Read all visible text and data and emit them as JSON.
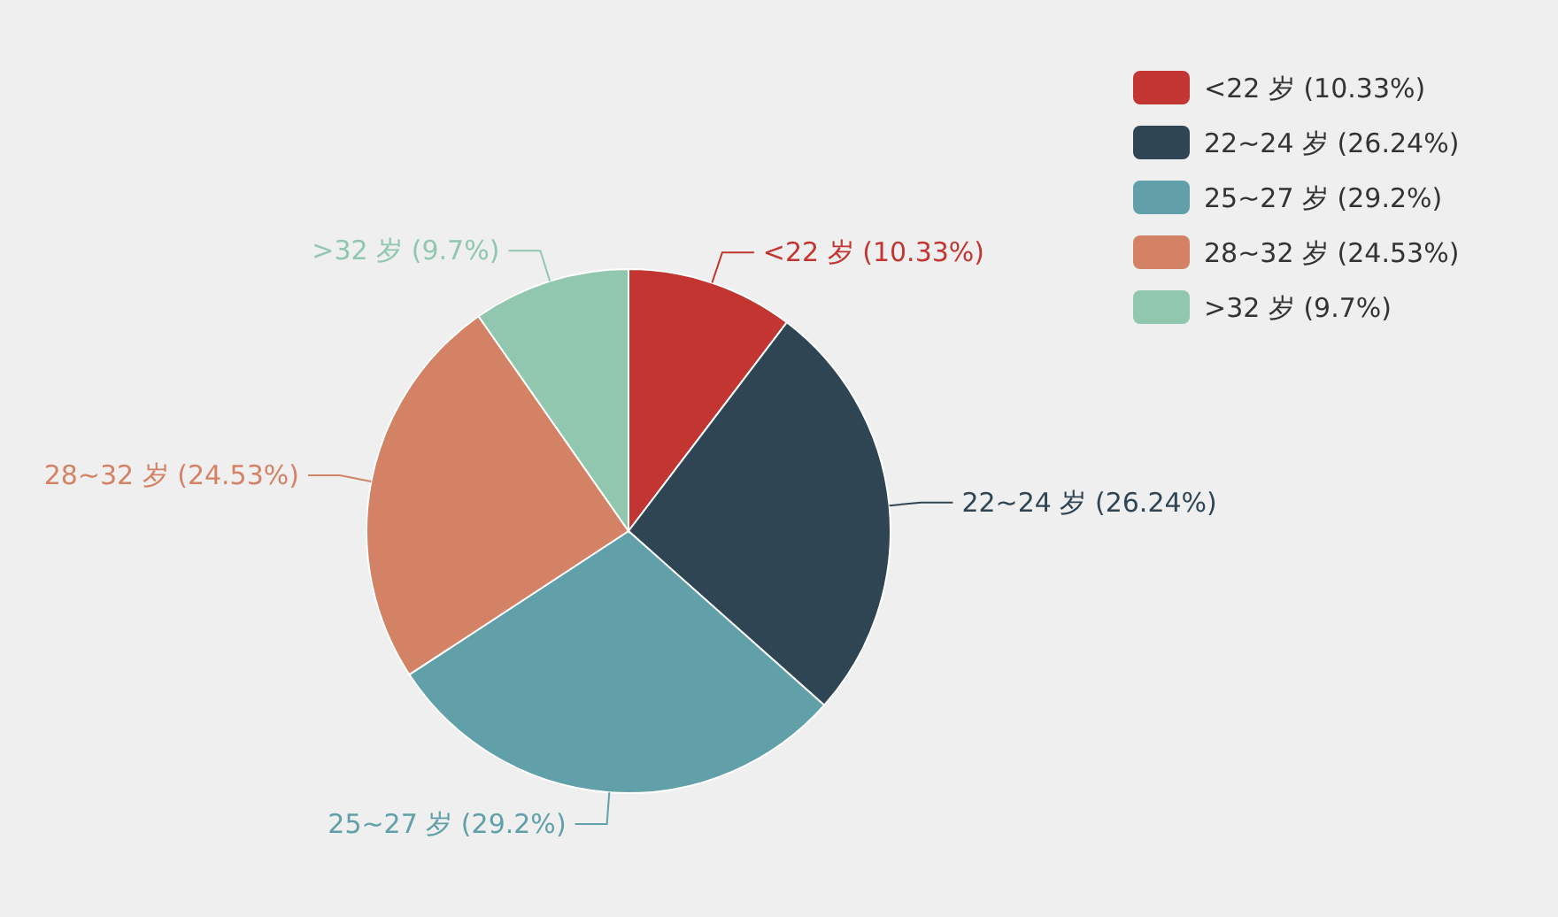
{
  "chart_data": {
    "type": "pie",
    "categories": [
      "<22 岁 (10.33%)",
      "22~24 岁 (26.24%)",
      "25~27 岁 (29.2%)",
      "28~32 岁 (24.53%)",
      ">32 岁 (9.7%)"
    ],
    "values": [
      10.33,
      26.24,
      29.2,
      24.53,
      9.7
    ],
    "colors": [
      "#c23531",
      "#2f4554",
      "#61a0a8",
      "#d48265",
      "#91c7ae"
    ],
    "legend": "top right"
  }
}
